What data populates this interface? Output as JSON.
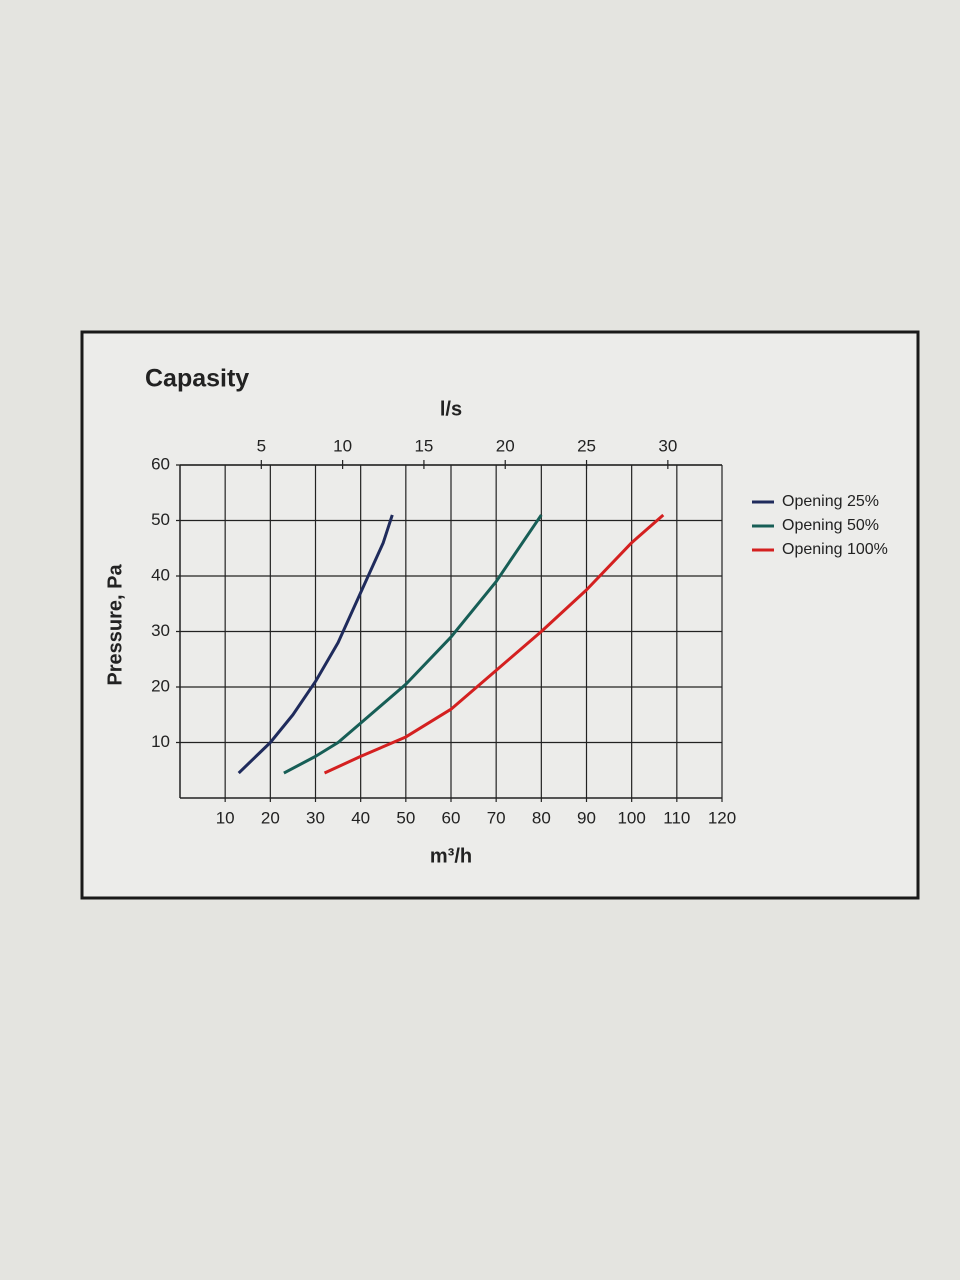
{
  "chart_data": {
    "type": "line",
    "title": "Capasity",
    "x_label": "m³/h",
    "x2_label": "l/s",
    "y_label": "Pressure, Pa",
    "xlim": [
      0,
      120
    ],
    "xticks": [
      10,
      20,
      30,
      40,
      50,
      60,
      70,
      80,
      90,
      100,
      110,
      120
    ],
    "x2lim": [
      0,
      33.33
    ],
    "x2ticks": [
      5,
      10,
      15,
      20,
      25,
      30
    ],
    "ylim": [
      0,
      60
    ],
    "yticks": [
      10,
      20,
      30,
      40,
      50,
      60
    ],
    "grid": true,
    "legend": "right",
    "series": [
      {
        "name": "Opening 25%",
        "color": "#1f2b5c",
        "x": [
          13,
          20,
          25,
          30,
          35,
          40,
          45,
          47
        ],
        "values": [
          4.5,
          10,
          15,
          21,
          28,
          37,
          46,
          51
        ]
      },
      {
        "name": "Opening 50%",
        "color": "#175e56",
        "x": [
          23,
          30,
          35,
          40,
          50,
          60,
          70,
          80
        ],
        "values": [
          4.5,
          7.5,
          10,
          13.5,
          20.5,
          29,
          39,
          51
        ]
      },
      {
        "name": "Opening 100%",
        "color": "#d42020",
        "x": [
          32,
          40,
          50,
          60,
          70,
          80,
          90,
          100,
          107
        ],
        "values": [
          4.5,
          7.5,
          11,
          16,
          23,
          30,
          37.5,
          46,
          51
        ]
      }
    ]
  }
}
